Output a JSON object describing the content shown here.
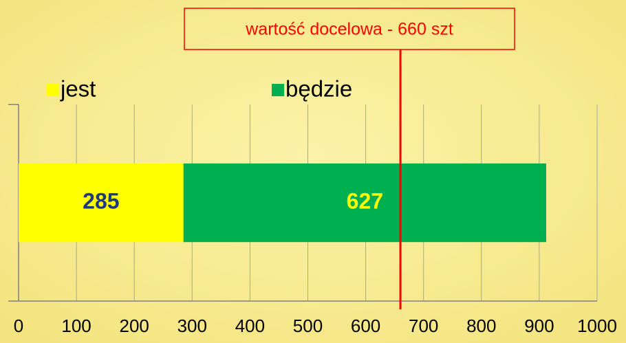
{
  "chart_data": {
    "type": "bar",
    "orientation": "horizontal",
    "stacked": true,
    "categories": [
      null
    ],
    "series": [
      {
        "name": "jest",
        "color": "#ffff00",
        "label_color": "#1f3a7a",
        "values": [
          285
        ]
      },
      {
        "name": "będzie",
        "color": "#00b050",
        "label_color": "#ffff00",
        "values": [
          627
        ]
      }
    ],
    "xlim": [
      0,
      1000
    ],
    "xticks": [
      0,
      100,
      200,
      300,
      400,
      500,
      600,
      700,
      800,
      900,
      1000
    ],
    "grid": true,
    "legend": "top",
    "annotations": [
      {
        "text": "wartość docelowa - 660 szt",
        "value": 660,
        "color": "#ff0000"
      }
    ]
  }
}
